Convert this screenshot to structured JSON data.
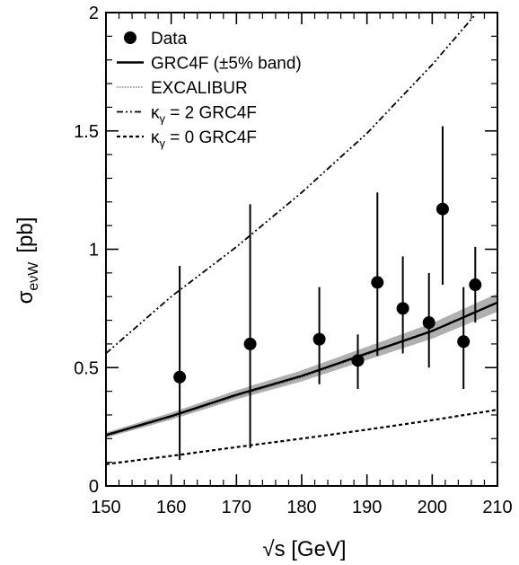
{
  "chart_data": {
    "type": "scatter",
    "title": "",
    "xlabel": "√s [GeV]",
    "ylabel": {
      "main": "σ",
      "sub": "eνW",
      "unit": "[pb]"
    },
    "xlim": [
      150,
      210
    ],
    "ylim": [
      0,
      2
    ],
    "x_ticks": [
      150,
      160,
      170,
      180,
      190,
      200,
      210
    ],
    "x_tick_labels": [
      "150",
      "160",
      "170",
      "180",
      "190",
      "200",
      "210"
    ],
    "y_ticks": [
      0,
      0.5,
      1,
      1.5,
      2
    ],
    "y_tick_labels": [
      "0",
      "0.5",
      "1",
      "1.5",
      "2"
    ],
    "grid": false,
    "legend_position": "top-left",
    "legend": [
      {
        "key": "data",
        "label": "Data"
      },
      {
        "key": "grc4f",
        "label": "GRC4F (±5% band)"
      },
      {
        "key": "excalibur",
        "label": "EXCALIBUR"
      },
      {
        "key": "k2",
        "label_pre": "κ",
        "label_sub": "γ",
        "label_post": " = 2 GRC4F"
      },
      {
        "key": "k0",
        "label_pre": "κ",
        "label_sub": "γ",
        "label_post": " = 0 GRC4F"
      }
    ],
    "series": [
      {
        "key": "data",
        "kind": "points",
        "x": [
          161.3,
          172.1,
          182.7,
          188.6,
          191.6,
          195.5,
          199.5,
          201.6,
          204.8,
          206.6
        ],
        "y": [
          0.46,
          0.6,
          0.62,
          0.53,
          0.86,
          0.75,
          0.69,
          1.17,
          0.61,
          0.85
        ],
        "y_low": [
          0.11,
          0.16,
          0.43,
          0.41,
          0.55,
          0.56,
          0.5,
          0.85,
          0.41,
          0.69
        ],
        "y_high": [
          0.93,
          1.19,
          0.84,
          0.64,
          1.24,
          0.97,
          0.9,
          1.52,
          0.84,
          1.01
        ]
      },
      {
        "key": "grc4f",
        "kind": "line",
        "band_pct": 5,
        "x": [
          150,
          160,
          170,
          180,
          190,
          200,
          210
        ],
        "y": [
          0.215,
          0.295,
          0.385,
          0.465,
          0.56,
          0.655,
          0.775
        ]
      },
      {
        "key": "excalibur",
        "kind": "line",
        "x": [
          150,
          160,
          170,
          180,
          190,
          200,
          210
        ],
        "y": [
          0.21,
          0.29,
          0.378,
          0.458,
          0.555,
          0.652,
          0.775
        ]
      },
      {
        "key": "k2",
        "kind": "line",
        "x": [
          150,
          160,
          170,
          180,
          190,
          200,
          210
        ],
        "y": [
          0.56,
          0.8,
          1.01,
          1.24,
          1.49,
          1.78,
          2.1
        ]
      },
      {
        "key": "k0",
        "kind": "line",
        "x": [
          150,
          160,
          170,
          180,
          190,
          200,
          210
        ],
        "y": [
          0.092,
          0.127,
          0.164,
          0.2,
          0.238,
          0.278,
          0.322
        ]
      }
    ]
  }
}
